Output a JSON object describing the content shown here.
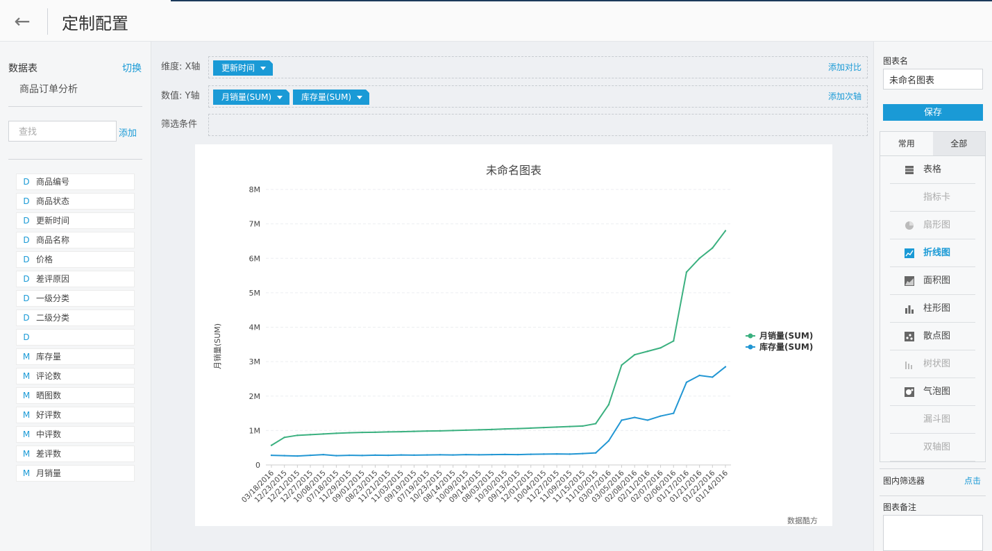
{
  "header": {
    "back_glyph": "←",
    "title": "定制配置"
  },
  "datasource": {
    "label": "数据表",
    "switch_label": "切换",
    "table_name": "商品订单分析",
    "search_placeholder": "查找",
    "add_label": "添加",
    "fields": [
      {
        "type": "D",
        "name": "商品编号"
      },
      {
        "type": "D",
        "name": "商品状态"
      },
      {
        "type": "D",
        "name": "更新时间"
      },
      {
        "type": "D",
        "name": "商品名称"
      },
      {
        "type": "D",
        "name": "价格"
      },
      {
        "type": "D",
        "name": "差评原因"
      },
      {
        "type": "D",
        "name": "一级分类"
      },
      {
        "type": "D",
        "name": "二级分类"
      },
      {
        "type": "D",
        "name": ""
      },
      {
        "type": "M",
        "name": "库存量"
      },
      {
        "type": "M",
        "name": "评论数"
      },
      {
        "type": "M",
        "name": "晒图数"
      },
      {
        "type": "M",
        "name": "好评数"
      },
      {
        "type": "M",
        "name": "中评数"
      },
      {
        "type": "M",
        "name": "差评数"
      },
      {
        "type": "M",
        "name": "月销量"
      }
    ]
  },
  "config": {
    "dimension_label": "维度: X轴",
    "dimension_pill": "更新时间",
    "add_compare": "添加对比",
    "value_label": "数值: Y轴",
    "value_pills": [
      "月销量(SUM)",
      "库存量(SUM)"
    ],
    "add_secondary_axis": "添加次轴",
    "filter_label": "筛选条件"
  },
  "right_panel": {
    "chart_name_label": "图表名",
    "chart_name_value": "未命名图表",
    "save_label": "保存",
    "tab_common": "常用",
    "tab_all": "全部",
    "chart_types": [
      {
        "label": "表格",
        "icon": "table-icon",
        "state": "normal"
      },
      {
        "label": "指标卡",
        "icon": "",
        "state": "disabled"
      },
      {
        "label": "扇形图",
        "icon": "pie-icon",
        "state": "disabled"
      },
      {
        "label": "折线图",
        "icon": "line-chart-icon",
        "state": "active"
      },
      {
        "label": "面积图",
        "icon": "area-chart-icon",
        "state": "normal"
      },
      {
        "label": "柱形图",
        "icon": "bar-chart-icon",
        "state": "normal"
      },
      {
        "label": "散点图",
        "icon": "scatter-icon",
        "state": "normal"
      },
      {
        "label": "树状图",
        "icon": "tree-icon",
        "state": "disabled"
      },
      {
        "label": "气泡图",
        "icon": "bubble-icon",
        "state": "normal"
      },
      {
        "label": "漏斗图",
        "icon": "",
        "state": "disabled"
      },
      {
        "label": "双轴图",
        "icon": "",
        "state": "disabled"
      }
    ],
    "inner_filter_label": "图内筛选器",
    "click_label": "点击",
    "chart_note_label": "图表备注"
  },
  "colors": {
    "accent": "#1a9ad6",
    "series_sales": "#3ab07f",
    "series_stock": "#2196d3"
  },
  "chart_data": {
    "type": "line",
    "title": "未命名图表",
    "ylabel": "月销量(SUM)",
    "xlabel": "",
    "watermark": "数据酷方",
    "ylim": [
      0,
      8000000
    ],
    "y_ticks": [
      "0",
      "1M",
      "2M",
      "3M",
      "4M",
      "5M",
      "6M",
      "7M",
      "8M"
    ],
    "x_ticks": [
      "03/18/2016",
      "12/23/2015",
      "12/21/2015",
      "12/27/2015",
      "10/08/2015",
      "07/18/2015",
      "11/29/2015",
      "09/01/2015",
      "08/23/2015",
      "11/21/2015",
      "11/03/2015",
      "09/19/2015",
      "07/19/2015",
      "10/23/2015",
      "08/14/2015",
      "10/09/2015",
      "09/14/2015",
      "08/03/2015",
      "10/30/2015",
      "09/13/2015",
      "12/01/2015",
      "10/04/2015",
      "11/27/2015",
      "11/09/2015",
      "11/15/2015",
      "11/10/2015",
      "03/07/2016",
      "03/05/2016",
      "02/08/2016",
      "02/11/2016",
      "02/07/2016",
      "02/06/2016",
      "01/17/2016",
      "01/21/2016",
      "01/22/2016",
      "01/14/2016"
    ],
    "legend_position": "right",
    "series": [
      {
        "name": "月销量(SUM)",
        "color": "#3ab07f",
        "values": [
          570000,
          800000,
          860000,
          880000,
          900000,
          920000,
          935000,
          945000,
          950000,
          960000,
          965000,
          975000,
          985000,
          990000,
          1000000,
          1010000,
          1020000,
          1030000,
          1045000,
          1055000,
          1070000,
          1085000,
          1100000,
          1115000,
          1130000,
          1200000,
          1750000,
          2900000,
          3200000,
          3300000,
          3400000,
          3600000,
          5600000,
          6000000,
          6300000,
          6800000
        ]
      },
      {
        "name": "库存量(SUM)",
        "color": "#2196d3",
        "values": [
          280000,
          270000,
          260000,
          280000,
          300000,
          270000,
          280000,
          275000,
          285000,
          280000,
          290000,
          285000,
          290000,
          295000,
          290000,
          300000,
          295000,
          300000,
          305000,
          300000,
          310000,
          315000,
          320000,
          315000,
          330000,
          350000,
          700000,
          1300000,
          1380000,
          1300000,
          1420000,
          1500000,
          2400000,
          2600000,
          2550000,
          2850000
        ]
      }
    ]
  }
}
